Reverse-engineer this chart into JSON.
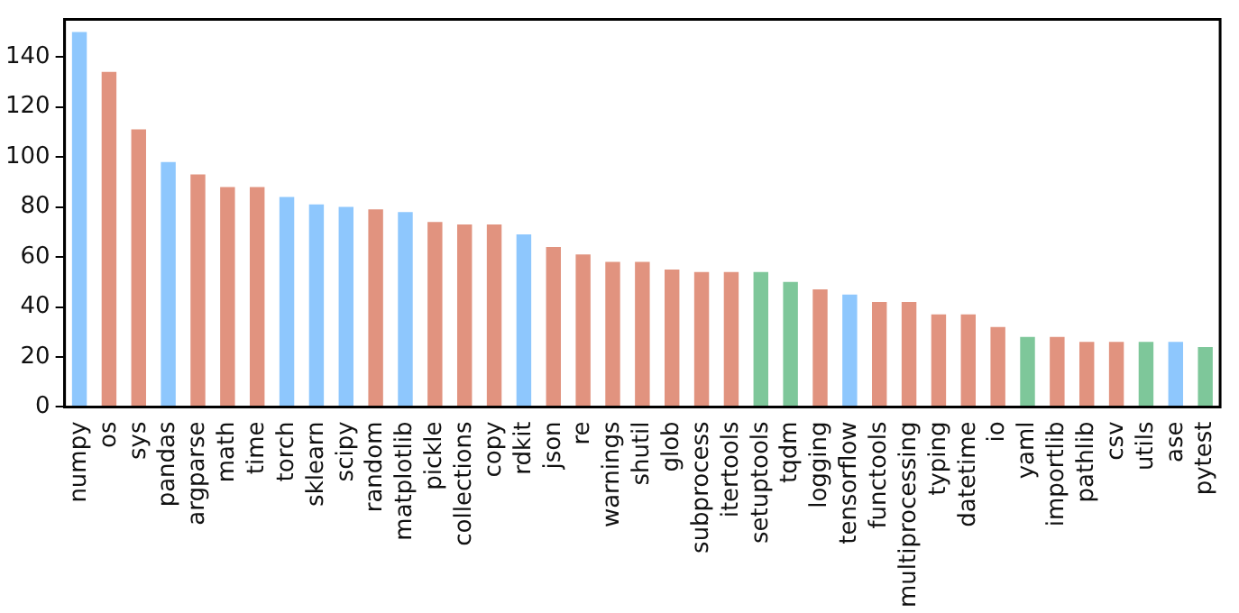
{
  "chart_data": {
    "type": "bar",
    "categories": [
      "numpy",
      "os",
      "sys",
      "pandas",
      "argparse",
      "math",
      "time",
      "torch",
      "sklearn",
      "scipy",
      "random",
      "matplotlib",
      "pickle",
      "collections",
      "copy",
      "rdkit",
      "json",
      "re",
      "warnings",
      "shutil",
      "glob",
      "subprocess",
      "itertools",
      "setuptools",
      "tqdm",
      "logging",
      "tensorflow",
      "functools",
      "multiprocessing",
      "typing",
      "datetime",
      "io",
      "yaml",
      "importlib",
      "pathlib",
      "csv",
      "utils",
      "ase",
      "pytest"
    ],
    "values": [
      150,
      134,
      111,
      98,
      93,
      88,
      88,
      84,
      81,
      80,
      79,
      78,
      74,
      73,
      73,
      69,
      64,
      61,
      58,
      58,
      55,
      54,
      54,
      54,
      50,
      47,
      45,
      42,
      42,
      37,
      37,
      32,
      28,
      28,
      26,
      26,
      26,
      26,
      24
    ],
    "colors": [
      "#8ec7fd",
      "#e1937f",
      "#e1937f",
      "#8ec7fd",
      "#e1937f",
      "#e1937f",
      "#e1937f",
      "#8ec7fd",
      "#8ec7fd",
      "#8ec7fd",
      "#e1937f",
      "#8ec7fd",
      "#e1937f",
      "#e1937f",
      "#e1937f",
      "#8ec7fd",
      "#e1937f",
      "#e1937f",
      "#e1937f",
      "#e1937f",
      "#e1937f",
      "#e1937f",
      "#e1937f",
      "#7ec79a",
      "#7ec79a",
      "#e1937f",
      "#8ec7fd",
      "#e1937f",
      "#e1937f",
      "#e1937f",
      "#e1937f",
      "#e1937f",
      "#7ec79a",
      "#e1937f",
      "#e1937f",
      "#e1937f",
      "#7ec79a",
      "#8ec7fd",
      "#7ec79a"
    ],
    "ylim": [
      0,
      155
    ],
    "yticks": [
      0,
      20,
      40,
      60,
      80,
      100,
      120,
      140
    ],
    "grid": false,
    "legend": false
  }
}
